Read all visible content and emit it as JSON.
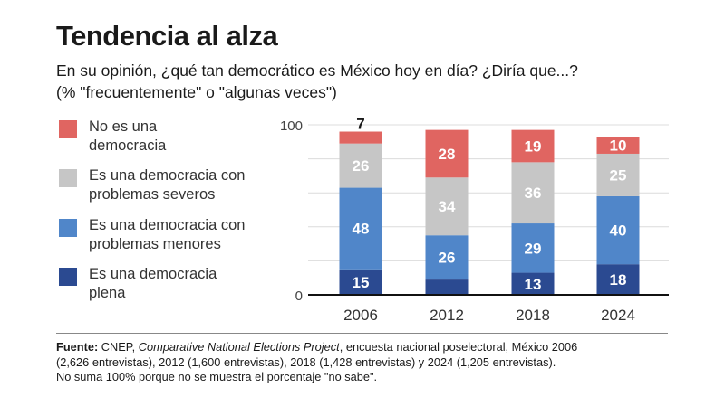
{
  "header": {
    "title": "Tendencia al alza",
    "subtitle_line1": "En su opinión, ¿qué tan democrático es México hoy en día? ¿Diría que...?",
    "subtitle_line2": "(% \"frecuentemente\" o \"algunas veces\")"
  },
  "legend": [
    {
      "line1": "No es una",
      "line2": "democracia",
      "color": "#e06561"
    },
    {
      "line1": "Es una democracia con",
      "line2": "problemas severos",
      "color": "#c6c6c6"
    },
    {
      "line1": "Es una democracia con",
      "line2": "problemas menores",
      "color": "#5086c9"
    },
    {
      "line1": "Es una democracia",
      "line2": "plena",
      "color": "#2b4a91"
    }
  ],
  "chart_data": {
    "type": "bar",
    "stacked": true,
    "title": "Tendencia al alza",
    "xlabel": "",
    "ylabel": "",
    "ylim": [
      0,
      100
    ],
    "yticks": [
      "0",
      "100"
    ],
    "grid": true,
    "categories": [
      "2006",
      "2012",
      "2018",
      "2024"
    ],
    "series": [
      {
        "name": "Es una democracia plena",
        "color": "#2b4a91",
        "values": [
          15,
          9,
          13,
          18
        ]
      },
      {
        "name": "Es una democracia con problemas menores",
        "color": "#5086c9",
        "values": [
          48,
          26,
          29,
          40
        ]
      },
      {
        "name": "Es una democracia con problemas severos",
        "color": "#c6c6c6",
        "values": [
          26,
          34,
          36,
          25
        ]
      },
      {
        "name": "No es una democracia",
        "color": "#e06561",
        "values": [
          7,
          28,
          19,
          10
        ]
      }
    ],
    "legend_position": "left"
  },
  "footer": {
    "source_label": "Fuente:",
    "source_pre": " CNEP, ",
    "source_italic": "Comparative National Elections Project",
    "source_post": ", encuesta nacional poselectoral, México 2006",
    "line2": "(2,626 entrevistas), 2012 (1,600 entrevistas), 2018 (1,428 entrevistas) y 2024 (1,205 entrevistas).",
    "line3": "No suma 100% porque no se muestra el porcentaje \"no sabe\"."
  }
}
